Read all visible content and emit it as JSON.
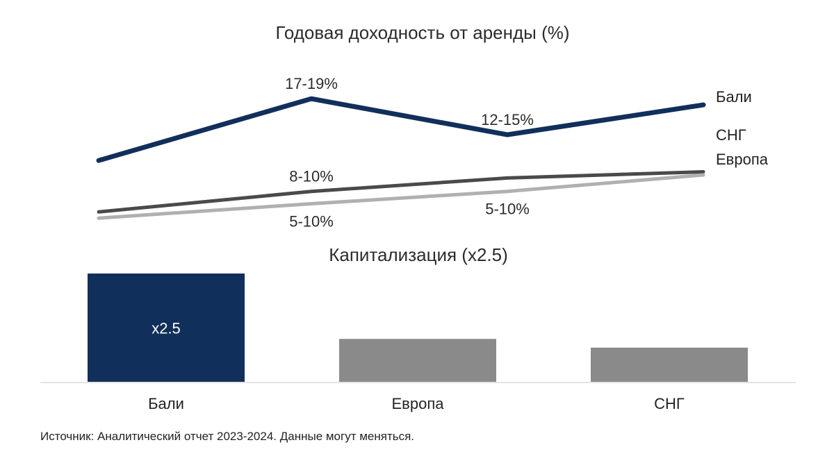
{
  "colors": {
    "bali": "#112f5b",
    "cis": "#4a4a4c",
    "europe": "#b0b0b0",
    "bar_gray": "#8a8a8a",
    "axis": "#e3e3e3"
  },
  "chart_data": [
    {
      "type": "line",
      "title": "Годовая доходность от аренды (%)",
      "x": [
        1,
        2,
        3,
        4
      ],
      "series": [
        {
          "name": "Бали",
          "color": "#112f5b",
          "values": [
            12,
            18,
            14.5,
            17.4
          ]
        },
        {
          "name": "СНГ",
          "color": "#4a4a4c",
          "values": [
            7,
            9,
            10.3,
            10.9
          ]
        },
        {
          "name": "Европа",
          "color": "#b0b0b0",
          "values": [
            6.4,
            7.8,
            9,
            10.6
          ]
        }
      ],
      "annotations": [
        {
          "series": 0,
          "point": 1,
          "text": "17-19%",
          "position": "above"
        },
        {
          "series": 0,
          "point": 2,
          "text": "12-15%",
          "position": "above"
        },
        {
          "series": 1,
          "point": 1,
          "text": "8-10%",
          "position": "above"
        },
        {
          "series": 2,
          "point": 1,
          "text": "5-10%",
          "position": "below"
        },
        {
          "series": 2,
          "point": 2,
          "text": "5-10%",
          "position": "below"
        }
      ],
      "ylim": [
        5,
        19.5
      ],
      "grid": false,
      "legend": "right-end labels"
    },
    {
      "type": "bar",
      "title": "Капитализация (x2.5)",
      "categories": [
        "Бали",
        "Европа",
        "СНГ"
      ],
      "values": [
        2.5,
        1.0,
        0.8
      ],
      "colors": [
        "#112f5b",
        "#8a8a8a",
        "#8a8a8a"
      ],
      "data_labels": [
        "x2.5",
        "",
        ""
      ],
      "ylim": [
        0,
        2.5
      ]
    }
  ],
  "source": "Источник: Аналитический отчет 2023-2024. Данные могут меняться."
}
